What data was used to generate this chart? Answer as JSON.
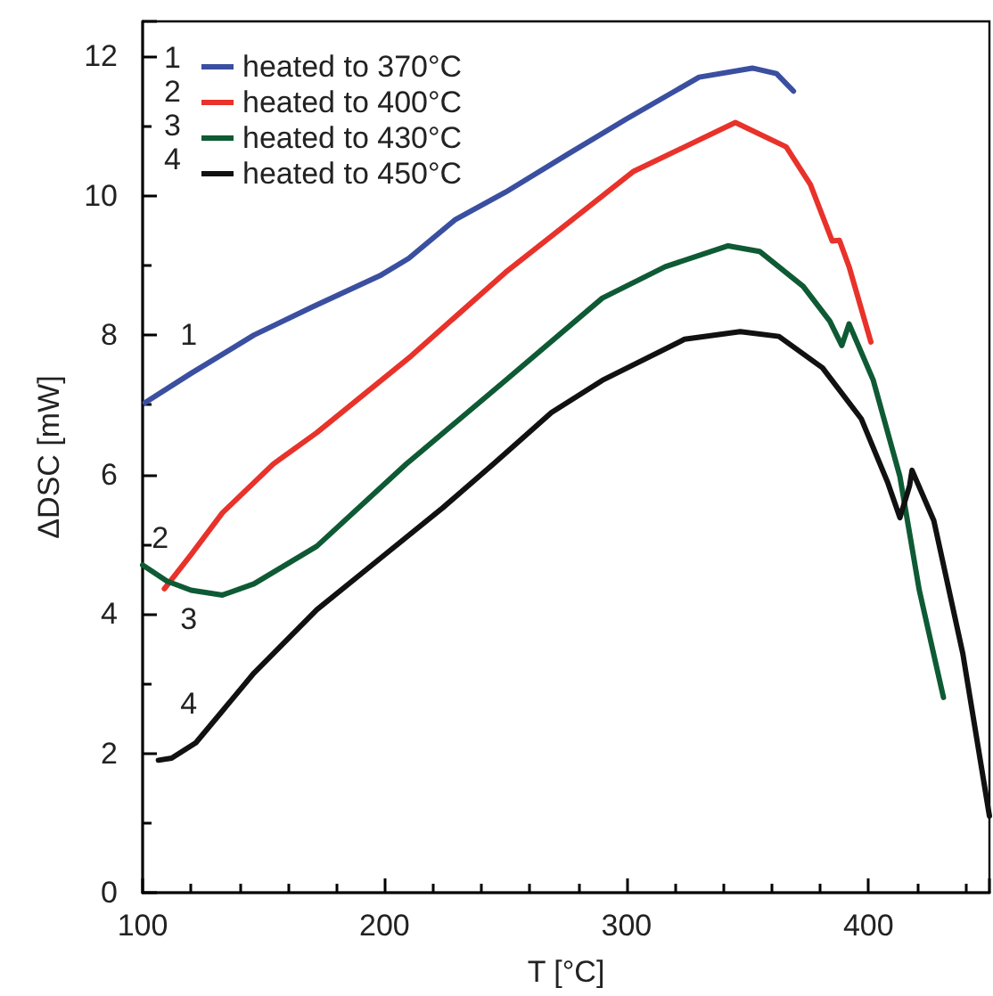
{
  "chart_data": {
    "type": "line",
    "xlabel": "T [°C]",
    "ylabel": "ΔDSC [mW]",
    "xlim": [
      100,
      450
    ],
    "xticks": [
      100,
      200,
      300,
      400
    ],
    "ylim": [
      0,
      12.5
    ],
    "yticks": [
      0,
      2,
      4,
      6,
      8,
      10,
      12
    ],
    "grid": false,
    "legend": "top left",
    "marker": "none",
    "line_style": "solid",
    "series": [
      {
        "name": "heated to 370°C",
        "color": "#3a4fa0",
        "x": [
          101,
          120,
          146,
          170,
          198,
          210,
          229,
          250,
          276,
          300,
          320,
          330,
          352,
          362,
          369
        ],
        "values": [
          7.03,
          7.45,
          8.0,
          8.4,
          8.85,
          9.1,
          9.65,
          10.05,
          10.6,
          11.1,
          11.5,
          11.7,
          11.83,
          11.75,
          11.5
        ]
      },
      {
        "name": "heated to 400°C",
        "color": "#e8322a",
        "x": [
          109,
          120,
          133,
          154,
          172,
          211,
          250,
          303,
          345,
          366,
          376,
          385,
          388,
          392,
          401
        ],
        "values": [
          4.36,
          4.85,
          5.45,
          6.15,
          6.6,
          7.7,
          8.9,
          10.35,
          11.05,
          10.7,
          10.16,
          9.35,
          9.36,
          8.98,
          7.9
        ]
      },
      {
        "name": "heated to 430°C",
        "color": "#0e5a34",
        "x": [
          100,
          110,
          120,
          133,
          146,
          172,
          209,
          250,
          290,
          316,
          342,
          355,
          373,
          384,
          389,
          392,
          402,
          413,
          421,
          431
        ],
        "values": [
          4.7,
          4.47,
          4.34,
          4.27,
          4.43,
          4.97,
          6.15,
          7.35,
          8.53,
          8.98,
          9.28,
          9.2,
          8.7,
          8.2,
          7.85,
          8.16,
          7.35,
          5.97,
          4.34,
          2.8
        ]
      },
      {
        "name": "heated to 450°C",
        "color": "#111111",
        "x": [
          106.5,
          112,
          122,
          146,
          172,
          198,
          224,
          245,
          269,
          290,
          324,
          347,
          363,
          381,
          397,
          408,
          413,
          417,
          418,
          427,
          439,
          450
        ],
        "values": [
          1.9,
          1.93,
          2.15,
          3.15,
          4.06,
          4.79,
          5.52,
          6.15,
          6.89,
          7.35,
          7.94,
          8.05,
          7.98,
          7.53,
          6.8,
          5.88,
          5.38,
          5.84,
          6.06,
          5.34,
          3.43,
          1.1
        ]
      }
    ],
    "annotations": [
      "1",
      "2",
      "3",
      "4"
    ]
  }
}
